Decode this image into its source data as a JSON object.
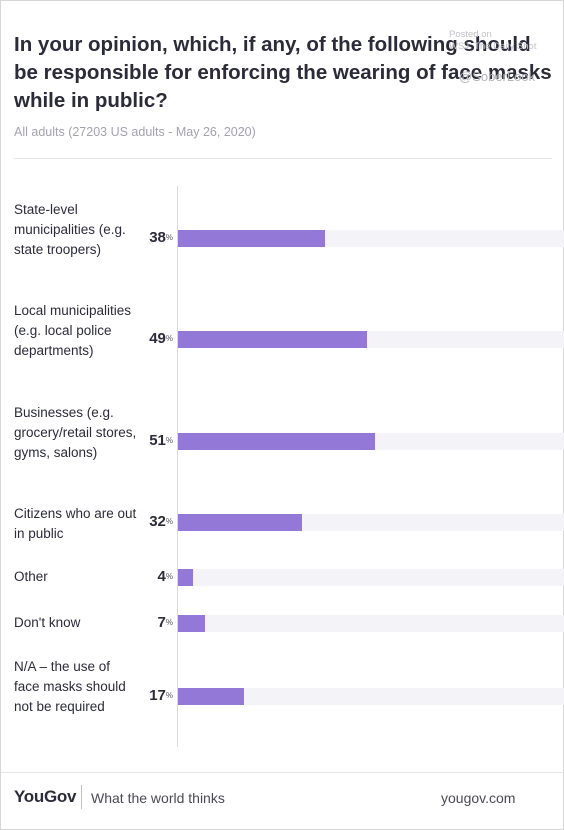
{
  "header": {
    "title": "In your opinion, which, if any, of the following should be responsible for enforcing the wearing of face masks while in public?",
    "subtitle": "All adults (27203 US adults - May 26, 2020)"
  },
  "watermark": {
    "line1": "Posted on",
    "line2": "WSJ: The Daily Shot",
    "handle": "@SoberLook"
  },
  "chart_data": {
    "type": "bar",
    "orientation": "horizontal",
    "title": "In your opinion, which, if any, of the following should be responsible for enforcing the wearing of face masks while in public?",
    "subtitle": "All adults (27203 US adults - May 26, 2020)",
    "unit": "%",
    "xlim": [
      0,
      100
    ],
    "categories": [
      "State-level municipalities (e.g. state troopers)",
      "Local municipalities (e.g. local police departments)",
      "Businesses (e.g. grocery/retail stores, gyms, salons)",
      "Citizens who are out in public",
      "Other",
      "Don't know",
      "N/A – the use of face masks should not be required"
    ],
    "values": [
      38,
      49,
      51,
      32,
      4,
      7,
      17
    ],
    "bar_color": "#9378d8",
    "track_color": "#f3f3f8"
  },
  "footer": {
    "brand": "YouGov",
    "tagline": "What the world thinks",
    "site": "yougov.com"
  }
}
